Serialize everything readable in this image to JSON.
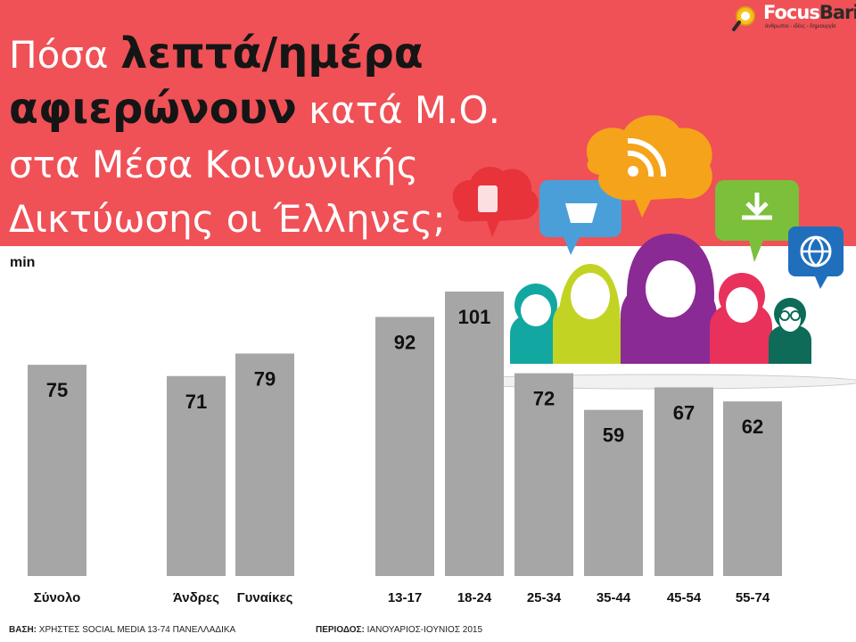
{
  "title": {
    "line1_regular": "Πόσα ",
    "line1_bold": "λεπτά/ημέρα",
    "line2_bold": "αφιερώνουν",
    "line2_regular": " κατά Μ.Ο.",
    "line3": "στα Μέσα Κοινωνικής",
    "line4": "Δικτύωσης οι Έλληνες;"
  },
  "logo": {
    "name_part1": "Focus",
    "name_part2": "Bari",
    "tagline": "άνθρωποι - ιδέες - δημιουργία"
  },
  "unit_label": "min",
  "colors": {
    "header": "#ef5157",
    "bar": "#a6a6a6",
    "value_text": "#111111"
  },
  "chart_data": {
    "type": "bar",
    "categories": [
      "Σύνολο",
      "Άνδρες",
      "Γυναίκες",
      "13-17",
      "18-24",
      "25-34",
      "35-44",
      "45-54",
      "55-74"
    ],
    "values": [
      75,
      71,
      79,
      92,
      101,
      72,
      59,
      67,
      62
    ],
    "ylabel": "min",
    "ylim": [
      0,
      101
    ],
    "grid": false,
    "legend": "none"
  },
  "footer": {
    "base_label": "ΒΑΣΗ:",
    "base_value": " ΧΡΗΣΤΕΣ SOCIAL MEDIA 13-74 ΠΑΝΕΛΛΑΔΙΚΑ",
    "period_label": "ΠΕΡΙΟΔΟΣ:",
    "period_value": " ΙΑΝΟΥΑΡΙΟΣ-ΙΟΥΝΙΟΣ 2015"
  }
}
